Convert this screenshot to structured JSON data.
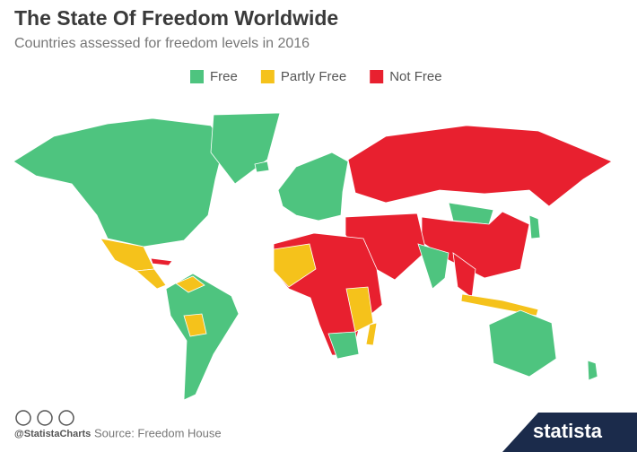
{
  "header": {
    "title": "The State Of Freedom Worldwide",
    "subtitle": "Countries assessed for freedom levels in 2016"
  },
  "legend": {
    "items": [
      {
        "name": "Free",
        "color": "#4ec47f"
      },
      {
        "name": "Partly Free",
        "color": "#f5c21b"
      },
      {
        "name": "Not Free",
        "color": "#e8202f"
      }
    ]
  },
  "footer": {
    "handle": "@StatistaCharts",
    "source": "Source: Freedom House",
    "brand": "statista"
  }
}
